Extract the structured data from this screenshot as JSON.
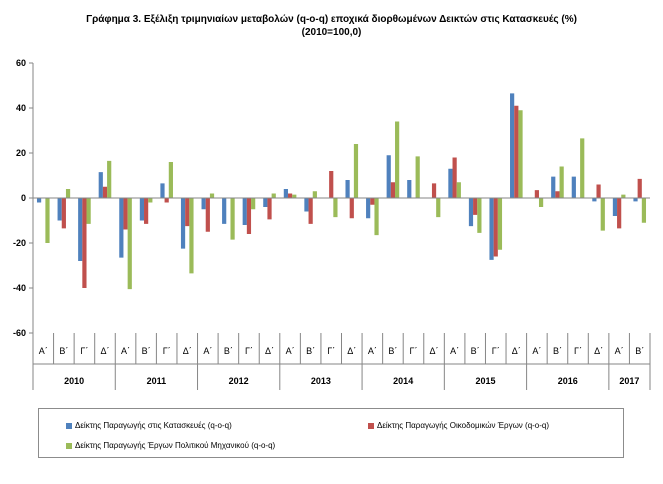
{
  "chart_data": {
    "type": "bar",
    "title": "Γράφημα 3. Εξέλιξη τριμηνιαίων μεταβολών (q-o-q) εποχικά διορθωμένων Δεικτών  στις Κατασκευές (%)",
    "subtitle": "(2010=100,0)",
    "ylim": [
      -60,
      60
    ],
    "yticks": [
      -60,
      -40,
      -20,
      0,
      20,
      40,
      60
    ],
    "grid": false,
    "legend_position": "bottom",
    "categories": [
      "Α΄",
      "Β΄",
      "Γ΄",
      "Δ΄",
      "Α΄",
      "Β΄",
      "Γ΄",
      "Δ΄",
      "Α΄",
      "Β΄",
      "Γ΄",
      "Δ΄",
      "Α΄",
      "Β΄",
      "Γ΄",
      "Δ΄",
      "Α΄",
      "Β΄",
      "Γ΄",
      "Δ΄",
      "Α΄",
      "Β΄",
      "Γ΄",
      "Δ΄",
      "Α΄",
      "Β΄",
      "Γ΄",
      "Δ΄",
      "Α΄",
      "Β΄"
    ],
    "years": [
      {
        "label": "2010",
        "count": 4
      },
      {
        "label": "2011",
        "count": 4
      },
      {
        "label": "2012",
        "count": 4
      },
      {
        "label": "2013",
        "count": 4
      },
      {
        "label": "2014",
        "count": 4
      },
      {
        "label": "2015",
        "count": 4
      },
      {
        "label": "2016",
        "count": 4
      },
      {
        "label": "2017",
        "count": 2
      }
    ],
    "series": [
      {
        "name": "Δείκτης Παραγωγής στις Κατασκευές (q-o-q)",
        "color": "#4f81bd",
        "values": [
          -2.0,
          -10.0,
          -28.0,
          11.5,
          -26.5,
          -10.0,
          6.5,
          -22.5,
          -5.0,
          -11.5,
          -12.0,
          -4.0,
          4.0,
          -6.0,
          0.0,
          8.0,
          -9.0,
          19.0,
          8.0,
          0.0,
          13.0,
          -12.5,
          -27.5,
          46.5,
          0.0,
          9.5,
          9.5,
          -1.5,
          -8.0,
          -1.5
        ]
      },
      {
        "name": "Δείκτης Παραγωγής Οικοδομικών Έργων (q-o-q)",
        "color": "#c0504d",
        "values": [
          0.0,
          -13.5,
          -40.0,
          5.0,
          -14.0,
          -11.5,
          -2.0,
          -12.5,
          -15.0,
          0.0,
          -16.0,
          -9.5,
          2.0,
          -11.5,
          12.0,
          -9.0,
          -3.0,
          7.0,
          0.0,
          6.5,
          18.0,
          -7.5,
          -26.0,
          41.0,
          3.5,
          3.0,
          0.0,
          6.0,
          -13.5,
          8.5
        ]
      },
      {
        "name": "Δείκτης Παραγωγής Έργων Πολιτικού Μηχανικού (q-o-q)",
        "color": "#9bbb59",
        "values": [
          -20.0,
          4.0,
          -11.5,
          16.5,
          -40.5,
          -2.0,
          16.0,
          -33.5,
          2.0,
          -18.5,
          -5.0,
          2.0,
          1.5,
          3.0,
          -8.5,
          24.0,
          -16.5,
          34.0,
          18.5,
          -8.5,
          7.0,
          -15.5,
          -23.0,
          39.0,
          -4.0,
          14.0,
          26.5,
          -14.5,
          1.5,
          -11.0
        ]
      }
    ]
  }
}
